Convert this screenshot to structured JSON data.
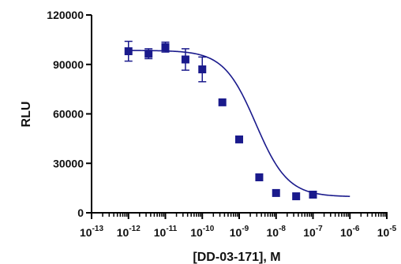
{
  "chart_data": {
    "type": "scatter",
    "xlabel": "[DD-03-171], M",
    "ylabel": "RLU",
    "x_scale": "log10",
    "x_range": [
      -13,
      -5
    ],
    "xtick_exponents": [
      -13,
      -12,
      -11,
      -10,
      -9,
      -8,
      -7,
      -6,
      -5
    ],
    "xtick_base": "10",
    "ylim": [
      0,
      120000
    ],
    "yticks": [
      0,
      30000,
      60000,
      90000,
      120000
    ],
    "yticks_labels": [
      "0",
      "30000",
      "60000",
      "90000",
      "120000"
    ],
    "grid": false,
    "legend": "none",
    "colors": {
      "series": "#1a1a8c",
      "axis": "#000000"
    },
    "series": [
      {
        "x": [
          1e-12,
          3.5e-12,
          1e-11,
          3.5e-11,
          1e-10,
          3.5e-10,
          1e-09,
          3.5e-09,
          1e-08,
          3.5e-08,
          1e-07,
          3.5e-07,
          1e-06
        ],
        "values": [
          98000,
          96500,
          100500,
          93000,
          87000,
          67000,
          44500,
          21500,
          12000,
          10000,
          11000,
          null,
          null
        ],
        "error": [
          6000,
          3000,
          3000,
          6500,
          7500,
          0,
          0,
          0,
          0,
          0,
          0,
          null,
          null
        ]
      }
    ],
    "fit": {
      "model": "four-parameter logistic",
      "top": 98500,
      "bottom": 9700,
      "log_ic50": -8.55,
      "hill_slope": -1.0
    }
  }
}
